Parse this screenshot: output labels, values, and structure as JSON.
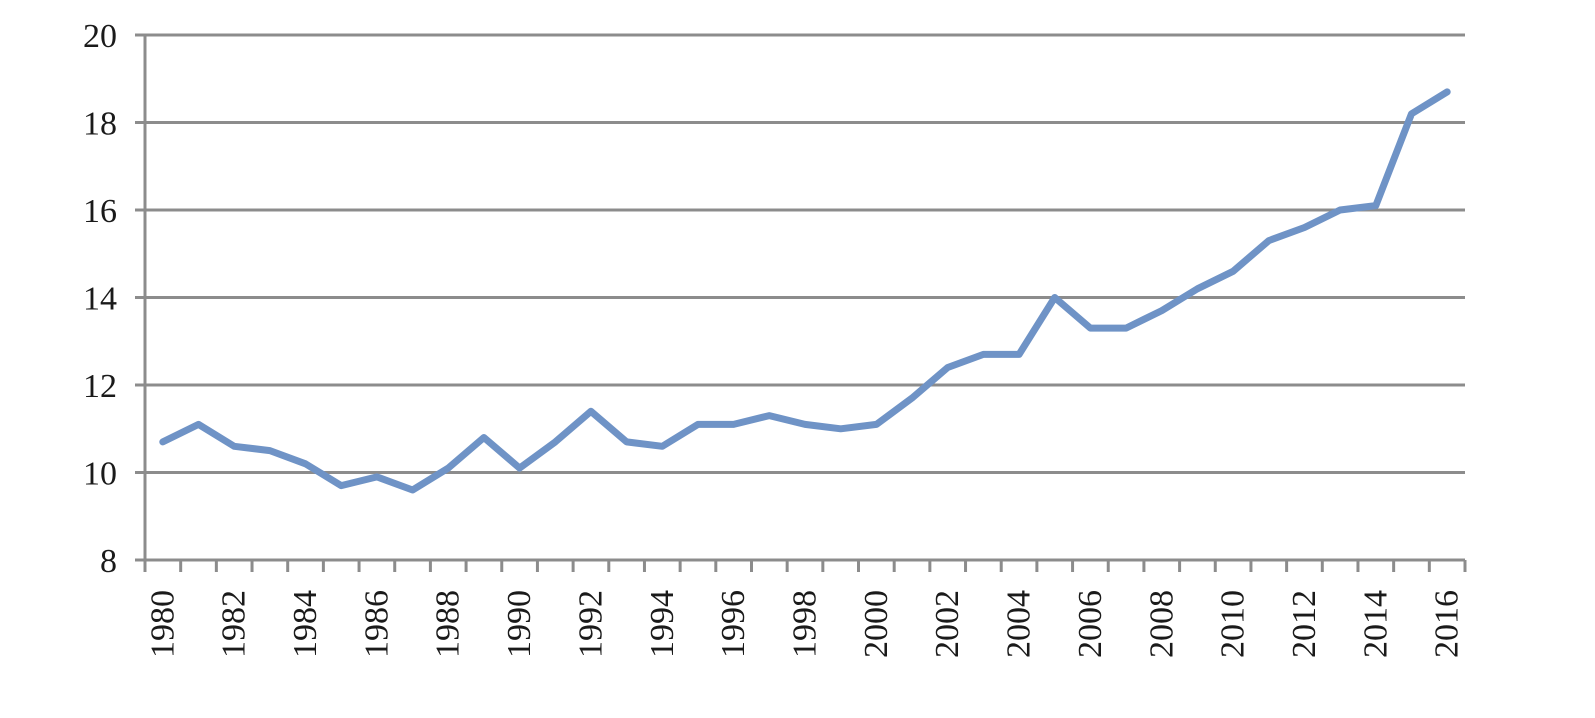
{
  "chart_data": {
    "type": "line",
    "title": "",
    "xlabel": "",
    "ylabel": "",
    "x": [
      1980,
      1981,
      1982,
      1983,
      1984,
      1985,
      1986,
      1987,
      1988,
      1989,
      1990,
      1991,
      1992,
      1993,
      1994,
      1995,
      1996,
      1997,
      1998,
      1999,
      2000,
      2001,
      2002,
      2003,
      2004,
      2005,
      2006,
      2007,
      2008,
      2009,
      2010,
      2011,
      2012,
      2013,
      2014,
      2015,
      2016
    ],
    "x_tick_labels": [
      "1980",
      "1982",
      "1984",
      "1986",
      "1988",
      "1990",
      "1992",
      "1994",
      "1996",
      "1998",
      "2000",
      "2002",
      "2004",
      "2006",
      "2008",
      "2010",
      "2012",
      "2014",
      "2016"
    ],
    "y_tick_labels": [
      "8",
      "10",
      "12",
      "14",
      "16",
      "18",
      "20"
    ],
    "ylim": [
      8,
      20
    ],
    "xlim": [
      1979.5,
      2016.5
    ],
    "grid": true,
    "series": [
      {
        "color": "#6f93c6",
        "values": [
          10.7,
          11.1,
          10.6,
          10.5,
          10.2,
          9.7,
          9.9,
          9.6,
          10.1,
          10.8,
          10.1,
          10.7,
          11.4,
          10.7,
          10.6,
          11.1,
          11.1,
          11.3,
          11.1,
          11.0,
          11.1,
          11.7,
          12.4,
          12.7,
          12.7,
          14.0,
          13.3,
          13.3,
          13.7,
          14.2,
          14.6,
          15.3,
          15.6,
          16.0,
          16.1,
          18.2,
          18.7
        ]
      }
    ]
  }
}
